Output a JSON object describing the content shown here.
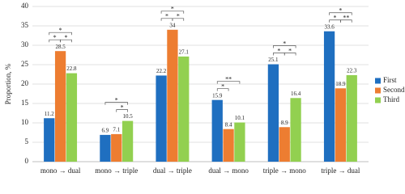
{
  "chart_data": {
    "type": "bar",
    "y_label": "Proportion, %",
    "categories": [
      "mono → dual",
      "mono → triple",
      "dual → triple",
      "dual → mono",
      "triple → mono",
      "triple → dual"
    ],
    "series": [
      {
        "name": "First",
        "color": "#1f6fc0",
        "values": [
          11.2,
          6.9,
          22.2,
          15.9,
          25.1,
          33.6
        ]
      },
      {
        "name": "Second",
        "color": "#ed7d31",
        "values": [
          28.5,
          7.1,
          34,
          8.4,
          8.9,
          18.9
        ]
      },
      {
        "name": "Third",
        "color": "#92d050",
        "values": [
          22.8,
          10.5,
          27.1,
          10.1,
          16.4,
          22.3
        ]
      }
    ],
    "ylim": [
      0,
      40
    ],
    "yticks": [
      0,
      5,
      10,
      15,
      20,
      25,
      30,
      35,
      40
    ],
    "grid": true,
    "legend": "right",
    "significance": [
      {
        "category": 0,
        "pair": [
          0,
          1
        ],
        "label": "*"
      },
      {
        "category": 0,
        "pair": [
          1,
          2
        ],
        "label": "*"
      },
      {
        "category": 0,
        "pair": [
          0,
          2
        ],
        "label": "*"
      },
      {
        "category": 1,
        "pair": [
          1,
          2
        ],
        "label": "*"
      },
      {
        "category": 1,
        "pair": [
          0,
          2
        ],
        "label": "*"
      },
      {
        "category": 2,
        "pair": [
          0,
          1
        ],
        "label": "*"
      },
      {
        "category": 2,
        "pair": [
          1,
          2
        ],
        "label": "*"
      },
      {
        "category": 2,
        "pair": [
          0,
          2
        ],
        "label": "*"
      },
      {
        "category": 3,
        "pair": [
          0,
          1
        ],
        "label": "*"
      },
      {
        "category": 3,
        "pair": [
          0,
          2
        ],
        "label": "**"
      },
      {
        "category": 4,
        "pair": [
          0,
          1
        ],
        "label": "*"
      },
      {
        "category": 4,
        "pair": [
          1,
          2
        ],
        "label": "*"
      },
      {
        "category": 4,
        "pair": [
          0,
          2
        ],
        "label": "*"
      },
      {
        "category": 5,
        "pair": [
          0,
          1
        ],
        "label": "*"
      },
      {
        "category": 5,
        "pair": [
          1,
          2
        ],
        "label": "**"
      },
      {
        "category": 5,
        "pair": [
          0,
          2
        ],
        "label": "*"
      }
    ]
  }
}
